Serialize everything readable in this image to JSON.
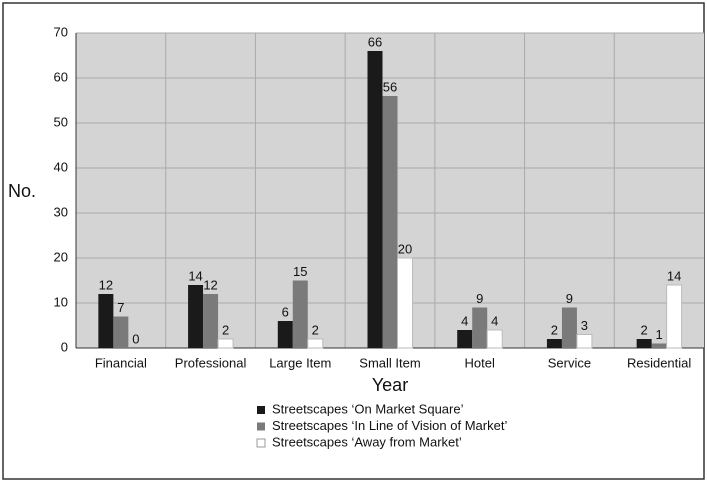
{
  "chart_data": {
    "type": "bar",
    "x_label": "Year",
    "y_label": "No.",
    "categories": [
      "Financial",
      "Professional",
      "Large Item",
      "Small Item",
      "Hotel",
      "Service",
      "Residential"
    ],
    "series": [
      {
        "name": "Streetscapes ‘On Market Square’",
        "color": "#1a1a1a",
        "values": [
          12,
          14,
          6,
          66,
          4,
          2,
          2
        ]
      },
      {
        "name": "Streetscapes ‘In Line of Vision of Market’",
        "color": "#7a7a7a",
        "values": [
          7,
          12,
          15,
          56,
          9,
          9,
          1
        ]
      },
      {
        "name": "Streetscapes ‘Away from Market’",
        "color": "#ffffff",
        "values": [
          0,
          2,
          2,
          20,
          4,
          3,
          14
        ]
      }
    ],
    "ylim": [
      0,
      70
    ],
    "yticks": [
      0,
      10,
      20,
      30,
      40,
      50,
      60,
      70
    ],
    "grid": true,
    "legend": "bottom"
  }
}
